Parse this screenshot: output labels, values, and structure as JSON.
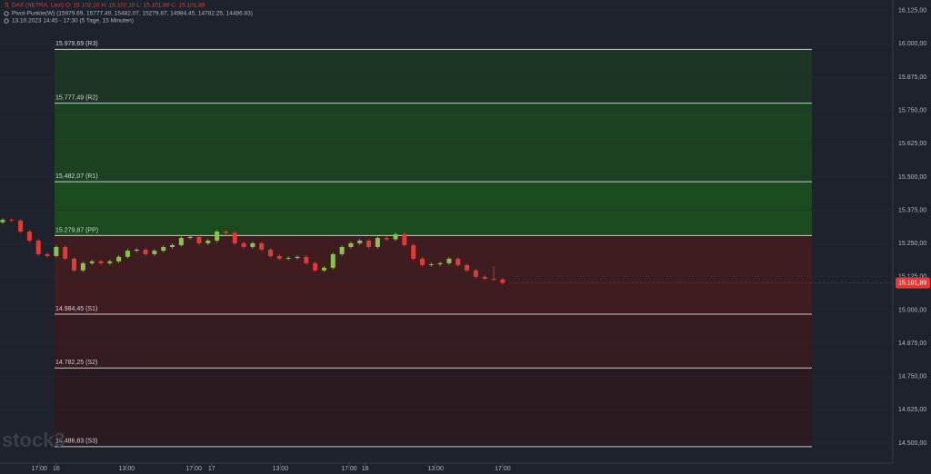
{
  "chart_data": {
    "type": "candlestick",
    "header": {
      "symbol": "DAX (XETRA, Last)  O: 15.102,10  H: 15.102,10  L: 15.101,89  C: 15.101,89",
      "indicator": "Pivot-Punkte(W)  (15979.69, 15777.49, 15482.07, 15279.87, 14984.45, 14782.25, 14486.83)",
      "period": "13.10.2023 14:45 - 17:30  (5 Tage, 15 Minuten)"
    },
    "watermark": "stock3",
    "last_price": {
      "value": 15101.89,
      "label": "15.101,89",
      "color": "#e53935"
    },
    "up_color": "#8bc34a",
    "down_color": "#e53935",
    "open": [
      15330,
      15339,
      15336,
      15295,
      15261,
      15210,
      15203,
      15237,
      15193,
      15149,
      15176,
      15183,
      15176,
      15183,
      15200,
      15223,
      15227,
      15210,
      15223,
      15237,
      15244,
      15271,
      15275,
      15251,
      15261,
      15295,
      15290,
      15251,
      15237,
      15251,
      15227,
      15203,
      15193,
      15196,
      15200,
      15176,
      15149,
      15159,
      15210,
      15237,
      15251,
      15261,
      15237,
      15271,
      15266,
      15285,
      15244,
      15193,
      15169,
      15172,
      15176,
      15193,
      15169,
      15149,
      15125,
      15118,
      15115
    ],
    "high": [
      15345,
      15345,
      15342,
      15301,
      15267,
      15216,
      15243,
      15243,
      15199,
      15182,
      15189,
      15189,
      15189,
      15206,
      15229,
      15233,
      15233,
      15229,
      15243,
      15250,
      15277,
      15281,
      15281,
      15267,
      15301,
      15301,
      15296,
      15257,
      15257,
      15257,
      15233,
      15209,
      15202,
      15206,
      15206,
      15182,
      15165,
      15216,
      15243,
      15257,
      15267,
      15267,
      15277,
      15277,
      15291,
      15291,
      15250,
      15199,
      15178,
      15182,
      15199,
      15199,
      15175,
      15155,
      15131,
      15165,
      15121
    ],
    "low": [
      15324,
      15330,
      15289,
      15255,
      15204,
      15197,
      15197,
      15187,
      15143,
      15143,
      15170,
      15170,
      15170,
      15177,
      15194,
      15217,
      15204,
      15204,
      15217,
      15231,
      15238,
      15265,
      15245,
      15245,
      15255,
      15284,
      15245,
      15231,
      15231,
      15221,
      15197,
      15187,
      15187,
      15190,
      15170,
      15143,
      15143,
      15153,
      15204,
      15231,
      15245,
      15231,
      15231,
      15260,
      15260,
      15238,
      15187,
      15163,
      15163,
      15166,
      15170,
      15163,
      15143,
      15119,
      15112,
      15109,
      15096
    ],
    "close": [
      15339,
      15336,
      15295,
      15261,
      15210,
      15203,
      15237,
      15193,
      15149,
      15176,
      15183,
      15176,
      15183,
      15200,
      15223,
      15227,
      15210,
      15223,
      15237,
      15244,
      15271,
      15275,
      15251,
      15261,
      15295,
      15290,
      15251,
      15237,
      15251,
      15227,
      15203,
      15193,
      15196,
      15200,
      15176,
      15149,
      15159,
      15210,
      15237,
      15251,
      15261,
      15237,
      15271,
      15266,
      15285,
      15244,
      15193,
      15169,
      15172,
      15176,
      15193,
      15169,
      15149,
      15125,
      15118,
      15115,
      15102
    ],
    "pivots": [
      {
        "value": 15979.69,
        "label": "15.979,69 (R3)"
      },
      {
        "value": 15777.49,
        "label": "15.777,49 (R2)"
      },
      {
        "value": 15482.07,
        "label": "15.482,07 (R1)"
      },
      {
        "value": 15279.87,
        "label": "15.279,87 (PP)"
      },
      {
        "value": 14984.45,
        "label": "14.984,45 (S1)"
      },
      {
        "value": 14782.25,
        "label": "14.782,25 (S2)"
      },
      {
        "value": 14486.83,
        "label": "14.486,83 (S3)"
      }
    ],
    "zone_colors": [
      "#1d3524",
      "#1b4322",
      "#1a4a1e",
      "#3e1c20",
      "#351b1f",
      "#2b1b20"
    ],
    "xlim": [
      -0.3,
      99.7
    ],
    "xticks": [
      {
        "value": 4.1,
        "label": "17:00"
      },
      {
        "value": 6,
        "label": "16"
      },
      {
        "value": 13.9,
        "label": "13:00"
      },
      {
        "value": 21.4,
        "label": "17:00"
      },
      {
        "value": 23.4,
        "label": "17"
      },
      {
        "value": 31.1,
        "label": "13:00"
      },
      {
        "value": 38.8,
        "label": "17:00"
      },
      {
        "value": 40.6,
        "label": "18"
      },
      {
        "value": 48.5,
        "label": "13:00"
      },
      {
        "value": 56,
        "label": "17:00"
      }
    ],
    "y2lim": [
      14425,
      16165
    ],
    "y2ticks": [
      {
        "value": 16125,
        "label": "16.125,00"
      },
      {
        "value": 16000,
        "label": "16.000,00"
      },
      {
        "value": 15875,
        "label": "15.875,00"
      },
      {
        "value": 15750,
        "label": "15.750,00"
      },
      {
        "value": 15625,
        "label": "15.625,00"
      },
      {
        "value": 15500,
        "label": "15.500,00"
      },
      {
        "value": 15375,
        "label": "15.375,00"
      },
      {
        "value": 15250,
        "label": "15.250,00"
      },
      {
        "value": 15125,
        "label": "15.125,00"
      },
      {
        "value": 15000,
        "label": "15.000,00"
      },
      {
        "value": 14875,
        "label": "14.875,00"
      },
      {
        "value": 14750,
        "label": "14.750,00"
      },
      {
        "value": 14625,
        "label": "14.625,00"
      },
      {
        "value": 14500,
        "label": "14.500,00"
      }
    ]
  }
}
